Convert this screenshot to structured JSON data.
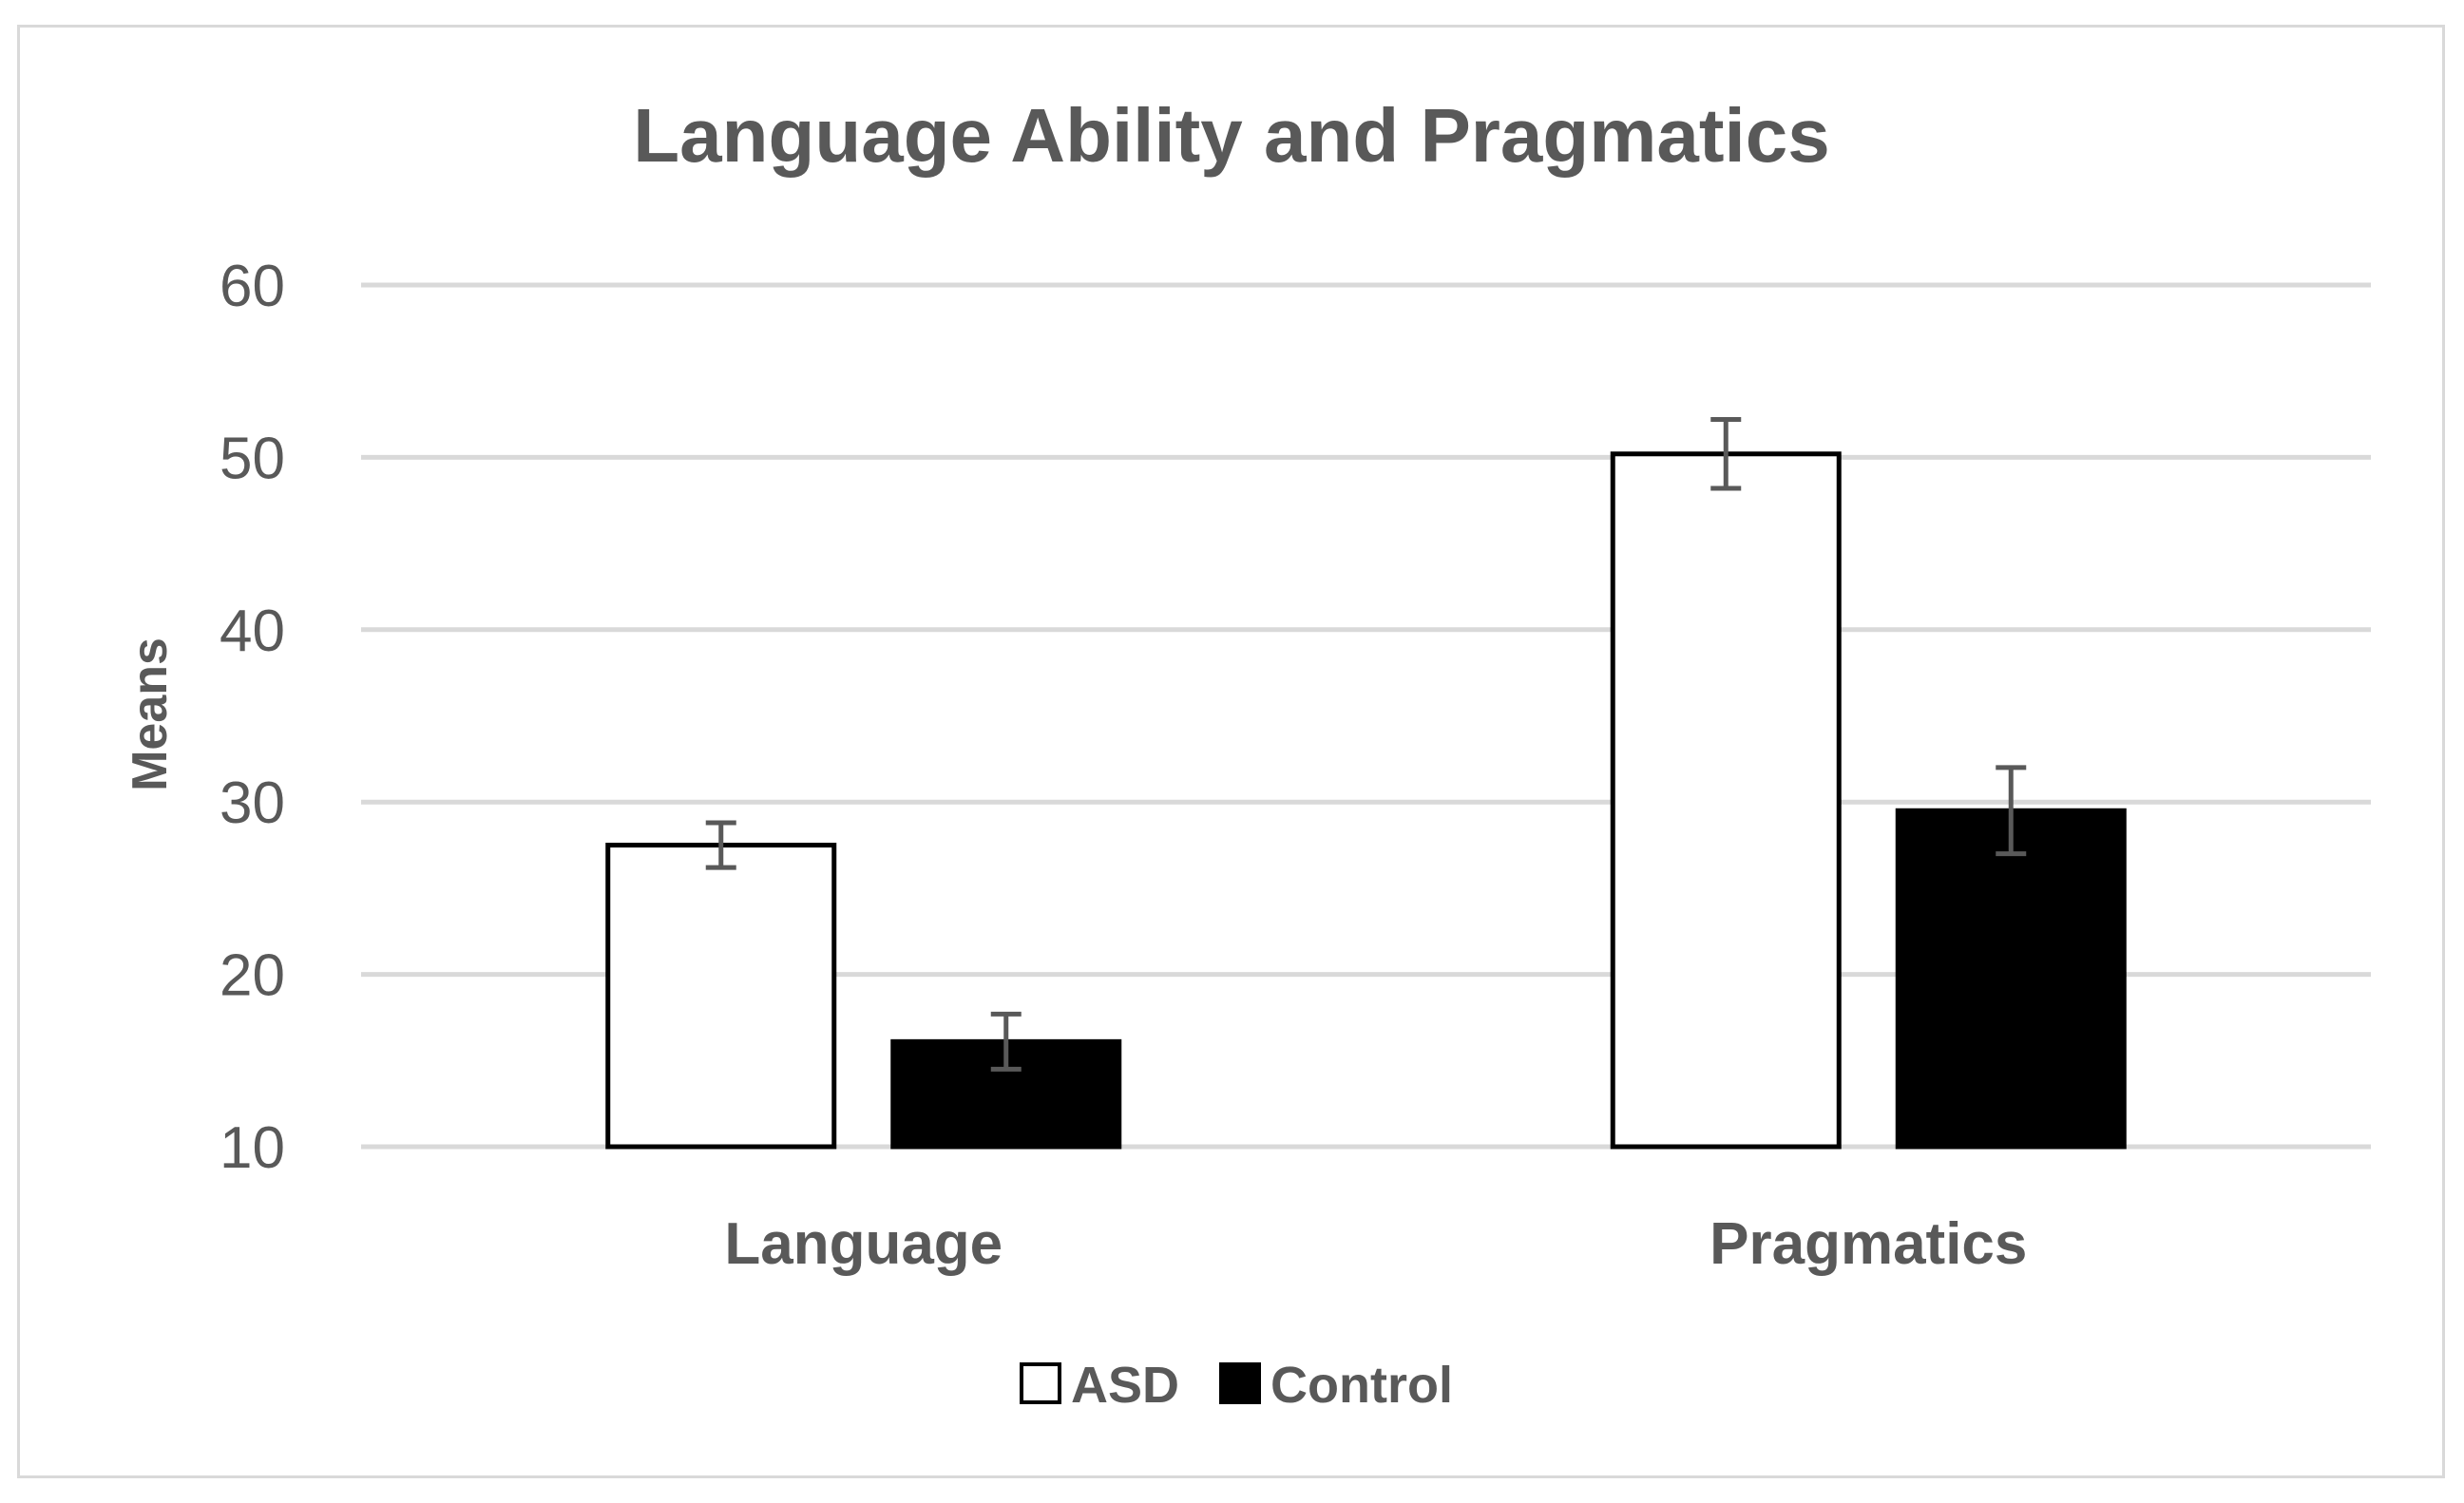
{
  "chart_data": {
    "type": "bar",
    "title": "Language Ability and Pragmatics",
    "xlabel": "",
    "ylabel": "Means",
    "ylim": [
      10,
      60
    ],
    "yticks": [
      "10",
      "20",
      "30",
      "40",
      "50",
      "60"
    ],
    "grid": true,
    "legend_position": "bottom",
    "categories": [
      "Language",
      "Pragmatics"
    ],
    "series": [
      {
        "name": "ASD",
        "values": [
          27.5,
          50.2
        ],
        "error": [
          1.3,
          2.0
        ],
        "fill": "#ffffff",
        "stroke": "#000000"
      },
      {
        "name": "Control",
        "values": [
          16.1,
          29.5
        ],
        "error": [
          1.6,
          2.5
        ],
        "fill": "#000000",
        "stroke": "#000000"
      }
    ],
    "colors": {
      "text": "#595959",
      "grid": "#d9d9d9",
      "error_bar": "#595959"
    }
  }
}
